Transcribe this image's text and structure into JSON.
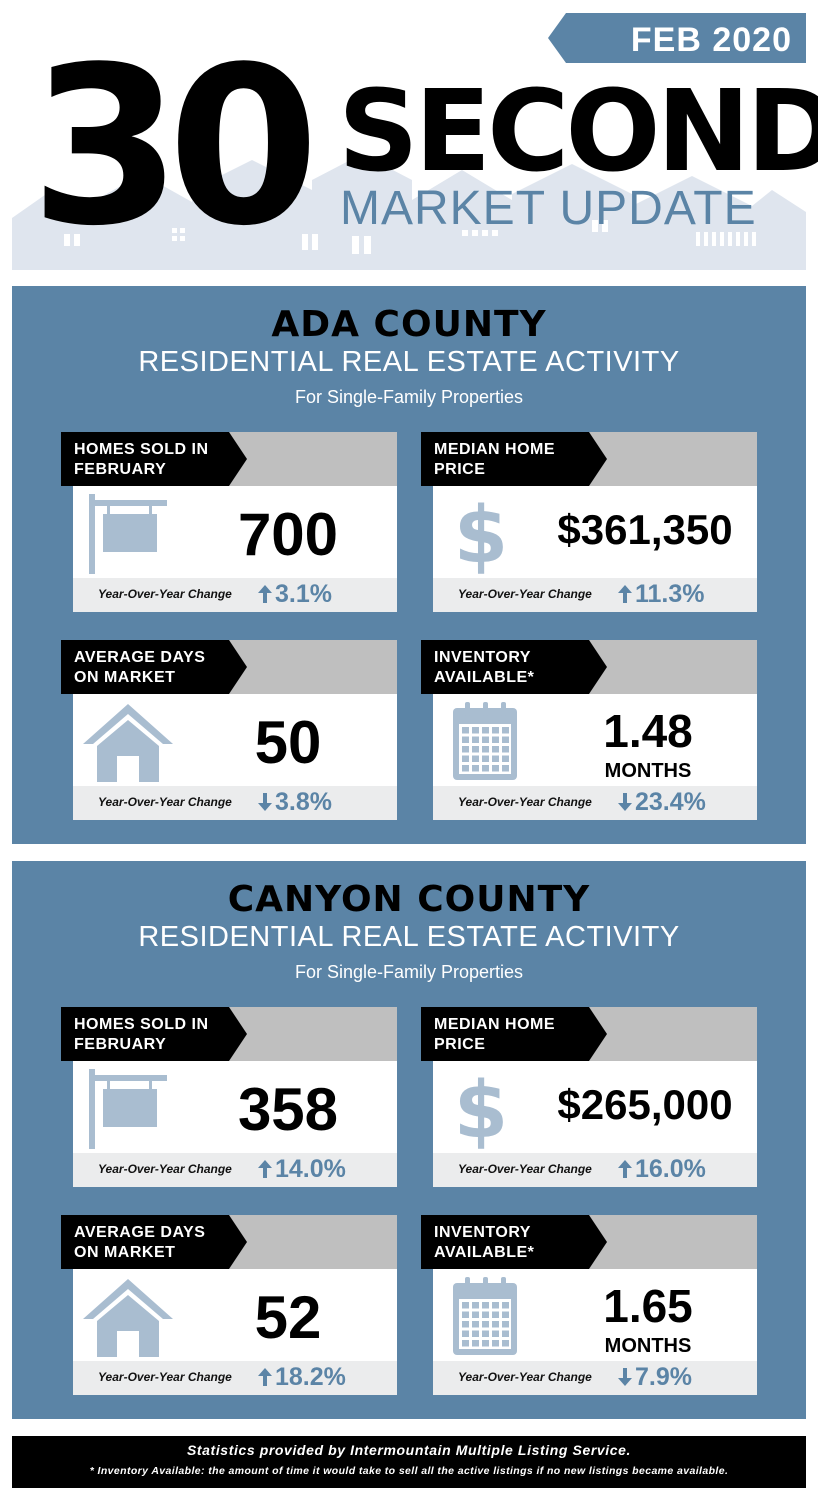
{
  "header": {
    "date": "FEB 2020",
    "big_number": "30",
    "second": "SECOND",
    "market_update": "MARKET UPDATE"
  },
  "colors": {
    "accent": "#5b84a6",
    "icon": "#a9bdd0",
    "tab_grey": "#bfbfbf",
    "footer_bg": "#ebeced"
  },
  "sections": [
    {
      "title": "ADA COUNTY",
      "subtitle": "RESIDENTIAL REAL ESTATE ACTIVITY",
      "note": "For Single-Family Properties",
      "cards": [
        {
          "label_1": "HOMES SOLD IN",
          "label_2": "FEBRUARY",
          "value": "700",
          "yoy_label": "Year-Over-Year Change",
          "arrow": "up",
          "change": "3.1%",
          "icon": "sign-icon"
        },
        {
          "label_1": "MEDIAN HOME",
          "label_2": "PRICE",
          "value": "$361,350",
          "yoy_label": "Year-Over-Year Change",
          "arrow": "up",
          "change": "11.3%",
          "icon": "dollar-icon"
        },
        {
          "label_1": "AVERAGE DAYS",
          "label_2": "ON MARKET",
          "value": "50",
          "yoy_label": "Year-Over-Year Change",
          "arrow": "down",
          "change": "3.8%",
          "icon": "house-icon"
        },
        {
          "label_1": "INVENTORY",
          "label_2": "AVAILABLE*",
          "value": "1.48",
          "unit": "MONTHS",
          "yoy_label": "Year-Over-Year Change",
          "arrow": "down",
          "change": "23.4%",
          "icon": "calendar-icon"
        }
      ]
    },
    {
      "title": "CANYON COUNTY",
      "subtitle": "RESIDENTIAL REAL ESTATE ACTIVITY",
      "note": "For Single-Family Properties",
      "cards": [
        {
          "label_1": "HOMES SOLD IN",
          "label_2": "FEBRUARY",
          "value": "358",
          "yoy_label": "Year-Over-Year Change",
          "arrow": "up",
          "change": "14.0%",
          "icon": "sign-icon"
        },
        {
          "label_1": "MEDIAN HOME",
          "label_2": "PRICE",
          "value": "$265,000",
          "yoy_label": "Year-Over-Year Change",
          "arrow": "up",
          "change": "16.0%",
          "icon": "dollar-icon"
        },
        {
          "label_1": "AVERAGE DAYS",
          "label_2": "ON MARKET",
          "value": "52",
          "yoy_label": "Year-Over-Year Change",
          "arrow": "up",
          "change": "18.2%",
          "icon": "house-icon"
        },
        {
          "label_1": "INVENTORY",
          "label_2": "AVAILABLE*",
          "value": "1.65",
          "unit": "MONTHS",
          "yoy_label": "Year-Over-Year Change",
          "arrow": "down",
          "change": "7.9%",
          "icon": "calendar-icon"
        }
      ]
    }
  ],
  "footer": {
    "line1": "Statistics provided by Intermountain Multiple Listing Service.",
    "line2": "* Inventory Available: the amount of time it would take to sell all the active listings if no new listings became available."
  }
}
